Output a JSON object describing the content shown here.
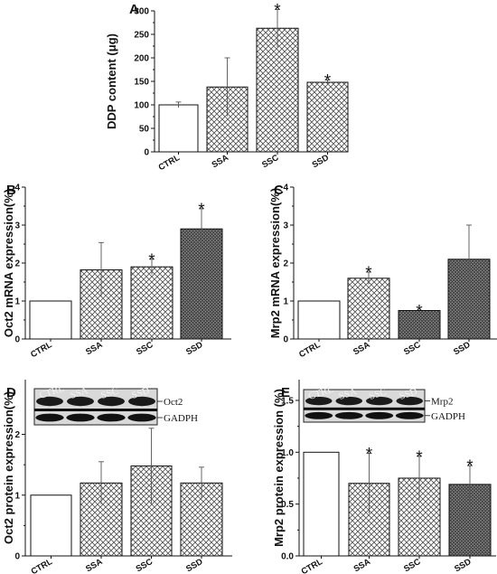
{
  "chart_data": [
    {
      "panel": "A",
      "type": "bar",
      "ylabel": "DDP content (μg)",
      "categories": [
        "CTRL",
        "SSA",
        "SSC",
        "SSD"
      ],
      "values": [
        100,
        138,
        263,
        148
      ],
      "errors": [
        6,
        62,
        40,
        5
      ],
      "significant": [
        false,
        false,
        true,
        true
      ],
      "ylim": [
        0,
        300
      ],
      "yticks": [
        "0",
        "50",
        "100",
        "150",
        "200",
        "250",
        "300"
      ],
      "fills": [
        "white",
        "crosshatch",
        "crosshatch",
        "crosshatch"
      ]
    },
    {
      "panel": "B",
      "type": "bar",
      "ylabel": "Oct2 mRNA expression(%)",
      "categories": [
        "CTRL",
        "SSA",
        "SSC",
        "SSD"
      ],
      "values": [
        1.0,
        1.82,
        1.9,
        2.9
      ],
      "errors": [
        0,
        0.72,
        0.2,
        0.53
      ],
      "significant": [
        false,
        false,
        true,
        true
      ],
      "ylim": [
        0,
        4
      ],
      "yticks": [
        "0",
        "1",
        "2",
        "3",
        "4"
      ],
      "fills": [
        "white",
        "crosshatch",
        "crosshatch",
        "dense"
      ]
    },
    {
      "panel": "C",
      "type": "bar",
      "ylabel": "Mrp2 mRNA expression(%)",
      "categories": [
        "CTRL",
        "SSA",
        "SSC",
        "SSD"
      ],
      "values": [
        1.0,
        1.6,
        0.75,
        2.1
      ],
      "errors": [
        0,
        0.16,
        0,
        0.9
      ],
      "significant": [
        false,
        true,
        true,
        false
      ],
      "ylim": [
        0,
        4
      ],
      "yticks": [
        "0",
        "1",
        "2",
        "3",
        "4"
      ],
      "fills": [
        "white",
        "crosshatch",
        "dense",
        "dense"
      ]
    },
    {
      "panel": "D",
      "type": "bar",
      "ylabel": "Oct2 protein expression(%)",
      "categories": [
        "CTRL",
        "SSA",
        "SSC",
        "SSD"
      ],
      "values": [
        1.0,
        1.2,
        1.48,
        1.2
      ],
      "errors": [
        0,
        0.35,
        0.62,
        0.26
      ],
      "significant": [
        false,
        false,
        false,
        false
      ],
      "ylim": [
        0,
        2.9
      ],
      "yticks": [
        "0",
        "1",
        "2"
      ],
      "ytick_values": [
        0,
        1,
        2
      ],
      "fills": [
        "white",
        "crosshatch",
        "crosshatch",
        "crosshatch"
      ],
      "blot": {
        "lanes": [
          "CTRL",
          "SSA",
          "SSC",
          "SSD"
        ],
        "bands": [
          "Oct2",
          "GADPH"
        ]
      }
    },
    {
      "panel": "E",
      "type": "bar",
      "ylabel": "Mrp2 protein expression (%)",
      "categories": [
        "CTRL",
        "SSA",
        "SSC",
        "SSD"
      ],
      "values": [
        1.0,
        0.7,
        0.75,
        0.69
      ],
      "errors": [
        0,
        0.29,
        0.21,
        0.18
      ],
      "significant": [
        false,
        true,
        true,
        true
      ],
      "ylim": [
        0,
        1.7
      ],
      "yticks": [
        "0.0",
        "0.5",
        "1.0",
        "1.5"
      ],
      "ytick_values": [
        0,
        0.5,
        1.0,
        1.5
      ],
      "fills": [
        "white",
        "crosshatch",
        "crosshatch",
        "dense"
      ],
      "blot": {
        "lanes": [
          "CTRL",
          "SSA",
          "SSC",
          "SSD"
        ],
        "bands": [
          "Mrp2",
          "GADPH"
        ]
      }
    }
  ],
  "star_symbol": "*"
}
